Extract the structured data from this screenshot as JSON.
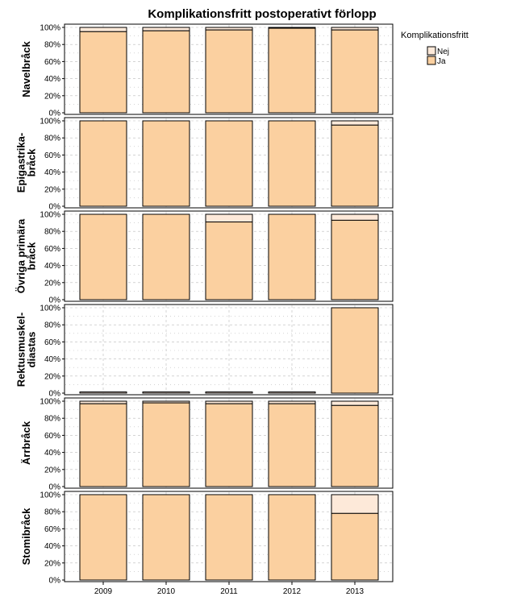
{
  "chart_data": {
    "type": "bar",
    "stacked": true,
    "title": "Komplikationsfritt postoperativt förlopp",
    "categories": [
      "2009",
      "2010",
      "2011",
      "2012",
      "2013"
    ],
    "y_ticks": [
      "0%",
      "20%",
      "40%",
      "60%",
      "80%",
      "100%"
    ],
    "ylim": [
      0,
      100
    ],
    "grid": true,
    "legend": {
      "title": "Komplikationsfritt",
      "placement": "top-right",
      "items": [
        {
          "label": "Nej",
          "color": "#fde9d9"
        },
        {
          "label": "Ja",
          "color": "#fbd0a0"
        }
      ]
    },
    "panels": [
      {
        "label_lines": [
          "Navelbråck"
        ],
        "ja": [
          95,
          96,
          97,
          99,
          97
        ]
      },
      {
        "label_lines": [
          "Epigastrika-",
          "bråck"
        ],
        "ja": [
          100,
          100,
          100,
          100,
          95
        ]
      },
      {
        "label_lines": [
          "Övriga primära",
          "bråck"
        ],
        "ja": [
          100,
          100,
          91,
          100,
          93
        ]
      },
      {
        "label_lines": [
          "Rektusmuskel-",
          "diastas"
        ],
        "ja": [
          0,
          0,
          0,
          0,
          100
        ],
        "empty": [
          true,
          true,
          true,
          true,
          false
        ]
      },
      {
        "label_lines": [
          "Ärrbråck"
        ],
        "ja": [
          97,
          98,
          97,
          97,
          95
        ]
      },
      {
        "label_lines": [
          "Stomibråck"
        ],
        "ja": [
          100,
          100,
          100,
          100,
          78
        ]
      }
    ]
  },
  "colors": {
    "ja": "#fbd0a0",
    "nej": "#fde9d9",
    "edge": "#000000",
    "grid": "#bbbbbb"
  }
}
